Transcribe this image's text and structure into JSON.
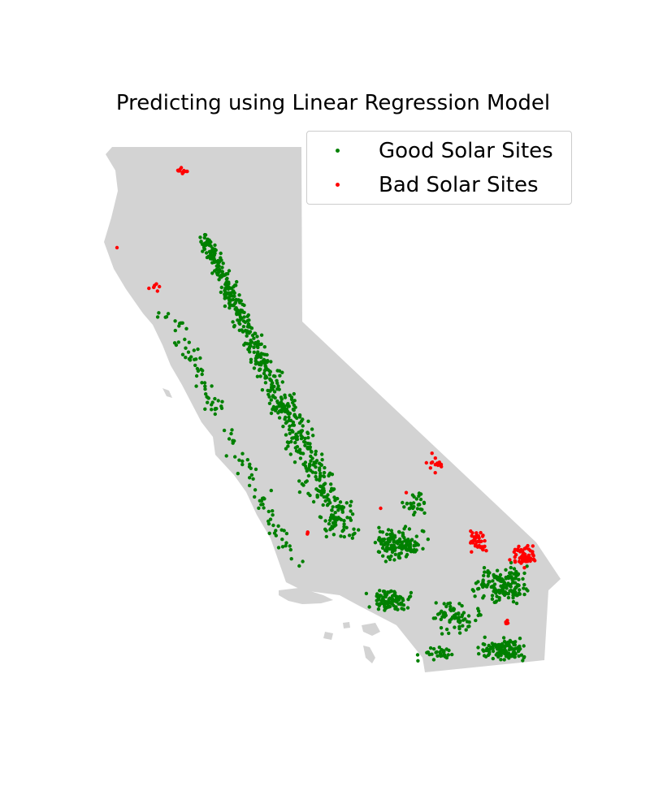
{
  "title": "Predicting using Linear Regression Model",
  "colors": {
    "land": "#d3d3d3",
    "good": "#008000",
    "bad": "#ff0000"
  },
  "legend": {
    "good_label": "Good Solar Sites",
    "bad_label": "Bad Solar Sites"
  },
  "chart_data": {
    "type": "scatter",
    "series": [
      {
        "name": "Good Solar Sites",
        "color": "#008000"
      },
      {
        "name": "Bad Solar Sites",
        "color": "#ff0000"
      }
    ],
    "xlabel": "",
    "ylabel": ""
  }
}
